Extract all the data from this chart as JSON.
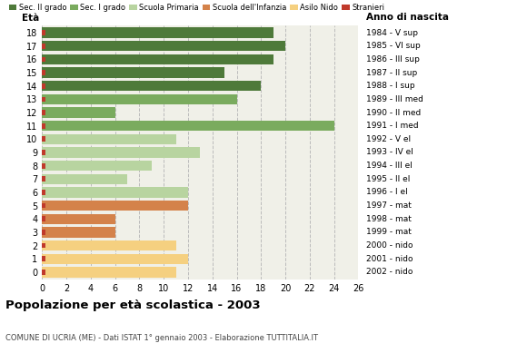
{
  "ages": [
    18,
    17,
    16,
    15,
    14,
    13,
    12,
    11,
    10,
    9,
    8,
    7,
    6,
    5,
    4,
    3,
    2,
    1,
    0
  ],
  "values": [
    19,
    20,
    19,
    15,
    18,
    16,
    6,
    24,
    11,
    13,
    9,
    7,
    12,
    12,
    6,
    6,
    11,
    12,
    11
  ],
  "anno_nascita": [
    "1984 - V sup",
    "1985 - VI sup",
    "1986 - III sup",
    "1987 - II sup",
    "1988 - I sup",
    "1989 - III med",
    "1990 - II med",
    "1991 - I med",
    "1992 - V el",
    "1993 - IV el",
    "1994 - III el",
    "1995 - II el",
    "1996 - I el",
    "1997 - mat",
    "1998 - mat",
    "1999 - mat",
    "2000 - nido",
    "2001 - nido",
    "2002 - nido"
  ],
  "colors": [
    "#4e7a3a",
    "#4e7a3a",
    "#4e7a3a",
    "#4e7a3a",
    "#4e7a3a",
    "#7aab5e",
    "#7aab5e",
    "#7aab5e",
    "#b8d4a0",
    "#b8d4a0",
    "#b8d4a0",
    "#b8d4a0",
    "#b8d4a0",
    "#d4824a",
    "#d4824a",
    "#d4824a",
    "#f5d080",
    "#f5d080",
    "#f5d080"
  ],
  "legend_labels": [
    "Sec. II grado",
    "Sec. I grado",
    "Scuola Primaria",
    "Scuola dell'Infanzia",
    "Asilo Nido",
    "Stranieri"
  ],
  "legend_colors": [
    "#4e7a3a",
    "#7aab5e",
    "#b8d4a0",
    "#d4824a",
    "#f5d080",
    "#c0392b"
  ],
  "stranieri_color": "#c0392b",
  "title": "Popolazione per età scolastica - 2003",
  "subtitle": "COMUNE DI UCRIA (ME) - Dati ISTAT 1° gennaio 2003 - Elaborazione TUTTITALIA.IT",
  "label_eta": "Età",
  "label_anno": "Anno di nascita",
  "xlim": [
    0,
    26
  ],
  "xticks": [
    0,
    2,
    4,
    6,
    8,
    10,
    12,
    14,
    16,
    18,
    20,
    22,
    24,
    26
  ],
  "bg_color": "#ffffff",
  "plot_bg_color": "#f0f0e8",
  "grid_color": "#bbbbbb",
  "bar_height": 0.78
}
